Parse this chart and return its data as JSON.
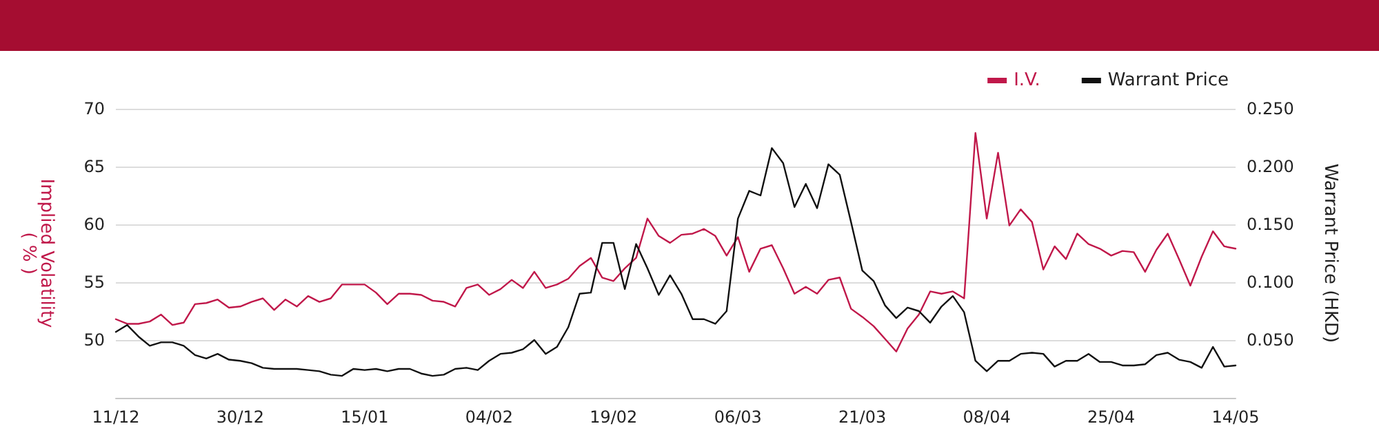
{
  "chart_data": {
    "type": "line",
    "ylabel": "Implied Volatility\n( % )",
    "y2label": "Warrant Price (HKD)",
    "categories": [
      "11/12",
      null,
      null,
      null,
      null,
      null,
      null,
      null,
      null,
      null,
      null,
      "30/12",
      null,
      null,
      null,
      null,
      null,
      null,
      null,
      null,
      null,
      null,
      "15/01",
      null,
      null,
      null,
      null,
      null,
      null,
      null,
      null,
      null,
      null,
      "04/02",
      null,
      null,
      null,
      null,
      null,
      null,
      null,
      null,
      null,
      null,
      "19/02",
      null,
      null,
      null,
      null,
      null,
      null,
      null,
      null,
      null,
      null,
      "06/03",
      null,
      null,
      null,
      null,
      null,
      null,
      null,
      null,
      null,
      null,
      "21/03",
      null,
      null,
      null,
      null,
      null,
      null,
      null,
      null,
      null,
      null,
      "08/04",
      null,
      null,
      null,
      null,
      null,
      null,
      null,
      null,
      null,
      null,
      "25/04",
      null,
      null,
      null,
      null,
      null,
      null,
      null,
      null,
      null,
      null,
      "14/05"
    ],
    "series": [
      {
        "name": "I.V.",
        "color": "#c0184a",
        "values": [
          51.8,
          51.4,
          51.4,
          51.6,
          52.2,
          51.3,
          51.5,
          53.1,
          53.2,
          53.5,
          52.8,
          52.9,
          53.3,
          53.6,
          52.6,
          53.5,
          52.9,
          53.8,
          53.3,
          53.6,
          54.8,
          54.8,
          54.8,
          54.1,
          53.1,
          54.0,
          54.0,
          53.9,
          53.4,
          53.3,
          52.9,
          54.5,
          54.8,
          53.9,
          54.4,
          55.2,
          54.5,
          55.9,
          54.5,
          54.8,
          55.3,
          56.4,
          57.1,
          55.4,
          55.1,
          56.2,
          57.1,
          60.5,
          59.0,
          58.4,
          59.1,
          59.2,
          59.6,
          59.0,
          57.3,
          58.9,
          55.9,
          57.9,
          58.2,
          56.2,
          54.0,
          54.6,
          54.0,
          55.2,
          55.4,
          52.7,
          52.0,
          51.2,
          50.1,
          49.0,
          51.0,
          52.2,
          54.2,
          54.0,
          54.2,
          53.6,
          67.9,
          60.5,
          66.2,
          59.9,
          61.3,
          60.2,
          56.1,
          58.1,
          57.0,
          59.2,
          58.3,
          57.9,
          57.3,
          57.7,
          57.6,
          55.9,
          57.8,
          59.2,
          57.0,
          54.7,
          57.2,
          59.4,
          58.1,
          57.9
        ]
      },
      {
        "name": "Warrant Price",
        "color": "#111111",
        "axis": "y2",
        "values": [
          0.057,
          0.063,
          0.053,
          0.045,
          0.048,
          0.048,
          0.045,
          0.037,
          0.034,
          0.038,
          0.033,
          0.032,
          0.03,
          0.026,
          0.025,
          0.025,
          0.025,
          0.024,
          0.023,
          0.02,
          0.019,
          0.025,
          0.024,
          0.025,
          0.023,
          0.025,
          0.025,
          0.021,
          0.019,
          0.02,
          0.025,
          0.026,
          0.024,
          0.032,
          0.038,
          0.039,
          0.042,
          0.05,
          0.038,
          0.044,
          0.061,
          0.09,
          0.091,
          0.134,
          0.134,
          0.094,
          0.133,
          0.112,
          0.089,
          0.106,
          0.09,
          0.068,
          0.068,
          0.064,
          0.075,
          0.155,
          0.179,
          0.175,
          0.216,
          0.203,
          0.165,
          0.185,
          0.164,
          0.202,
          0.193,
          0.152,
          0.11,
          0.101,
          0.08,
          0.069,
          0.078,
          0.075,
          0.065,
          0.079,
          0.088,
          0.074,
          0.032,
          0.023,
          0.032,
          0.032,
          0.038,
          0.039,
          0.038,
          0.027,
          0.032,
          0.032,
          0.038,
          0.031,
          0.031,
          0.028,
          0.028,
          0.029,
          0.037,
          0.039,
          0.033,
          0.031,
          0.026,
          0.044,
          0.027,
          0.028
        ]
      }
    ],
    "ylim": [
      45,
      70
    ],
    "yticks": [
      50,
      55,
      60,
      65,
      70
    ],
    "y2lim": [
      0,
      0.25
    ],
    "y2ticks": [
      {
        "value": 0.05,
        "label": "0.050"
      },
      {
        "value": 0.1,
        "label": "0.100"
      },
      {
        "value": 0.15,
        "label": "0.150"
      },
      {
        "value": 0.2,
        "label": "0.200"
      },
      {
        "value": 0.25,
        "label": "0.250"
      }
    ],
    "grid": "y",
    "legend": "top right",
    "marker": "none",
    "line_style": "solid"
  }
}
